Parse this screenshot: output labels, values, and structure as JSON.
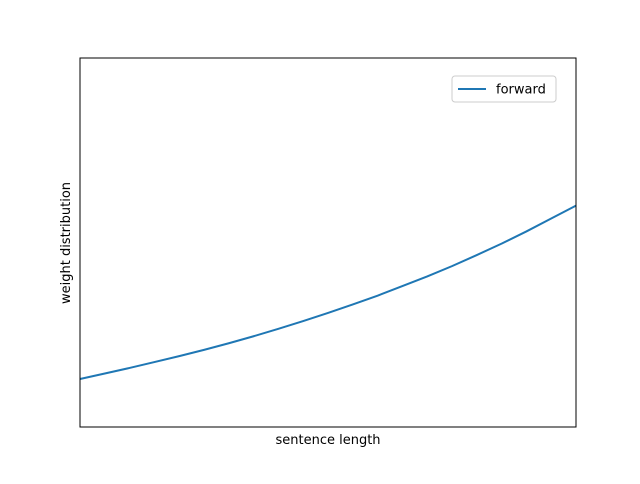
{
  "chart_data": {
    "type": "line",
    "xlabel": "sentence length",
    "ylabel": "weight distribution",
    "xlim": [
      0,
      1
    ],
    "ylim": [
      0,
      1
    ],
    "x_ticks_shown": false,
    "y_ticks_shown": false,
    "grid": false,
    "legend_position": "top-right",
    "series": [
      {
        "name": "forward",
        "color": "#1f77b4",
        "x": [
          0,
          0.05,
          0.1,
          0.15,
          0.2,
          0.25,
          0.3,
          0.35,
          0.4,
          0.45,
          0.5,
          0.55,
          0.6,
          0.65,
          0.7,
          0.75,
          0.8,
          0.85,
          0.9,
          0.95,
          1.0
        ],
        "y": [
          0.13,
          0.145,
          0.16,
          0.176,
          0.192,
          0.209,
          0.227,
          0.246,
          0.266,
          0.287,
          0.309,
          0.332,
          0.356,
          0.382,
          0.408,
          0.436,
          0.466,
          0.497,
          0.53,
          0.565,
          0.6
        ]
      }
    ]
  }
}
